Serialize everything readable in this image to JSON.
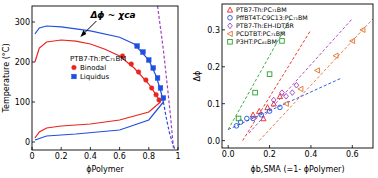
{
  "chart_data": [
    {
      "type": "line",
      "x_label": "ϕPolymer",
      "y_label": "Temperature (°C)",
      "xlim": [
        0,
        1
      ],
      "xticks": [
        0,
        0.2,
        0.4,
        0.6,
        0.8,
        1
      ],
      "ylim": [
        -20,
        340
      ],
      "yticks": [
        0,
        100,
        200,
        300
      ],
      "legend": "center",
      "legend_title": "PTB7-Th:PC₇₁BM",
      "annotation": "Δϕ ~ χca",
      "series": [
        {
          "type": "line",
          "color": "#e8251f",
          "line_style": "solid",
          "x": [
            0.02,
            0.05,
            0.1,
            0.2,
            0.3,
            0.4,
            0.5,
            0.6,
            0.7,
            0.8,
            0.85,
            0.88
          ],
          "values": [
            200,
            235,
            250,
            255,
            252,
            245,
            232,
            215,
            185,
            145,
            118,
            100
          ]
        },
        {
          "type": "line",
          "color": "#e8251f",
          "line_style": "solid",
          "x": [
            0.02,
            0.05,
            0.1,
            0.2,
            0.4,
            0.6,
            0.8,
            0.88
          ],
          "values": [
            10,
            25,
            35,
            40,
            45,
            55,
            75,
            100
          ]
        },
        {
          "type": "line",
          "color": "#1f4fe0",
          "line_style": "solid",
          "x": [
            0.02,
            0.05,
            0.1,
            0.2,
            0.4,
            0.6,
            0.7,
            0.8,
            0.85,
            0.88,
            0.9
          ],
          "values": [
            270,
            285,
            290,
            288,
            278,
            262,
            245,
            205,
            165,
            130,
            100
          ]
        },
        {
          "type": "line",
          "color": "#1f4fe0",
          "line_style": "solid",
          "x": [
            0.02,
            0.1,
            0.3,
            0.6,
            0.8,
            0.9
          ],
          "values": [
            5,
            15,
            20,
            30,
            55,
            100
          ]
        },
        {
          "type": "line",
          "color": "#1f4fe0",
          "line_style": "dashed",
          "x": [
            0.9,
            0.92,
            0.94,
            0.96,
            0.98
          ],
          "values": [
            100,
            60,
            25,
            0,
            -20
          ]
        },
        {
          "type": "line",
          "color": "#a040c0",
          "line_style": "dashed",
          "x": [
            0.86,
            0.9,
            0.93,
            0.95,
            0.97
          ],
          "values": [
            340,
            230,
            130,
            60,
            -20
          ]
        },
        {
          "name": "Binodal",
          "type": "scatter",
          "marker": "circle",
          "color": "#e8251f",
          "x": [
            0.62,
            0.68,
            0.73,
            0.78,
            0.82,
            0.85,
            0.87
          ],
          "values": [
            215,
            195,
            175,
            155,
            135,
            118,
            105
          ]
        },
        {
          "name": "Liquidus",
          "type": "scatter",
          "marker": "square",
          "color": "#1f4fe0",
          "x": [
            0.72,
            0.76,
            0.8,
            0.83,
            0.86,
            0.88,
            0.9
          ],
          "values": [
            240,
            225,
            205,
            185,
            160,
            135,
            110
          ]
        }
      ]
    },
    {
      "type": "scatter",
      "x_label": "ϕb,SMA (=1- ϕPolymer)",
      "y_label": "Δϕ",
      "xlim": [
        -0.03,
        0.7
      ],
      "xticks": [
        {
          "value": 0,
          "label": "0.0"
        },
        0.2,
        0.4,
        0.6
      ],
      "ylim": [
        -0.02,
        0.37
      ],
      "yticks": [
        {
          "value": 0,
          "label": "0.0"
        },
        0.1,
        0.2,
        0.3
      ],
      "legend": "upper left",
      "series": [
        {
          "name": "PTB7-Th:PC₇₁BM",
          "color": "#e8251f",
          "marker": "triangle-open",
          "line_style": "dashed",
          "x": [
            0.12,
            0.15,
            0.17,
            0.19,
            0.22,
            0.25
          ],
          "values": [
            0.07,
            0.08,
            0.06,
            0.09,
            0.1,
            0.12
          ],
          "fit": {
            "x": [
              0.07,
              0.4
            ],
            "values": [
              0,
              0.3
            ]
          }
        },
        {
          "name": "PffBT4T-C9C13:PC₇₁BM",
          "color": "#1f4fe0",
          "marker": "circle-open",
          "line_style": "dashed",
          "x": [
            0.04,
            0.06,
            0.09,
            0.12,
            0.16,
            0.2,
            0.25
          ],
          "values": [
            0.04,
            0.05,
            0.06,
            0.06,
            0.07,
            0.08,
            0.09
          ],
          "fit": {
            "x": [
              0,
              0.55
            ],
            "values": [
              0.03,
              0.17
            ]
          }
        },
        {
          "name": "PTB7-Th:EH-IDTBR",
          "color": "#a040c0",
          "marker": "diamond-open",
          "line_style": "dashed",
          "x": [
            0.22,
            0.26,
            0.28,
            0.31,
            0.33
          ],
          "values": [
            0.11,
            0.13,
            0.12,
            0.13,
            0.15
          ],
          "fit": {
            "x": [
              0.1,
              0.6
            ],
            "values": [
              0.02,
              0.33
            ]
          }
        },
        {
          "name": "PCDTBT:PC₇₁BM",
          "color": "#e0702a",
          "marker": "triangle-left-open",
          "line_style": "dashed",
          "x": [
            0.28,
            0.35,
            0.43,
            0.52,
            0.6,
            0.65
          ],
          "values": [
            0.1,
            0.14,
            0.19,
            0.23,
            0.27,
            0.3
          ],
          "fit": {
            "x": [
              0.15,
              0.7
            ],
            "values": [
              0,
              0.33
            ]
          }
        },
        {
          "name": "P3HT:PC₆₁BM",
          "color": "#2ca02c",
          "marker": "square-open",
          "line_style": "dashed",
          "x": [
            0.05,
            0.13,
            0.2,
            0.26
          ],
          "values": [
            0.06,
            0.13,
            0.18,
            0.27
          ],
          "fit": {
            "x": [
              0,
              0.3
            ],
            "values": [
              0.03,
              0.33
            ]
          }
        }
      ]
    }
  ]
}
